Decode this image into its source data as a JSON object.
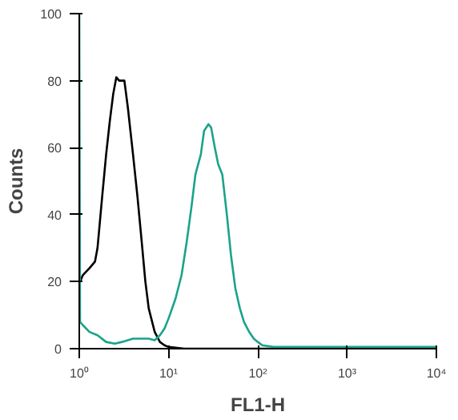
{
  "chart_data": {
    "type": "line",
    "xlabel": "FL1-H",
    "ylabel": "Counts",
    "log": "x",
    "grid": false,
    "xlim": [
      1,
      10000
    ],
    "xticks": [
      {
        "value": 1,
        "label": "10⁰"
      },
      {
        "value": 10,
        "label": "10¹"
      },
      {
        "value": 100,
        "label": "10²"
      },
      {
        "value": 1000,
        "label": "10³"
      },
      {
        "value": 10000,
        "label": "10⁴"
      }
    ],
    "ylim": [
      0,
      100
    ],
    "yticks": [
      0,
      20,
      40,
      60,
      80,
      100
    ],
    "series": [
      {
        "color": "#000000",
        "x": [
          1,
          1.02,
          1.1,
          1.3,
          1.5,
          1.6,
          1.8,
          2,
          2.2,
          2.4,
          2.6,
          2.8,
          3.2,
          3.5,
          4,
          4.5,
          5,
          5.5,
          6,
          7,
          8,
          9,
          10,
          15,
          250
        ],
        "values": [
          28,
          20,
          22,
          24,
          26,
          30,
          45,
          58,
          68,
          76,
          81,
          80,
          80,
          72,
          58,
          45,
          32,
          20,
          12,
          5,
          2,
          1,
          0.5,
          0,
          0
        ]
      },
      {
        "color": "#1aa38a",
        "x": [
          1,
          1.02,
          1.1,
          1.3,
          1.6,
          2,
          2.5,
          3,
          4,
          5,
          6,
          7,
          8,
          9,
          10,
          12,
          14,
          16,
          18,
          20,
          23,
          25,
          28,
          30,
          33,
          36,
          40,
          45,
          50,
          56,
          63,
          70,
          80,
          90,
          100,
          112,
          150,
          300,
          1000,
          10000
        ],
        "values": [
          100,
          8,
          7,
          5,
          4,
          2,
          1.5,
          2,
          3,
          3,
          3,
          2.5,
          4,
          6,
          9,
          15,
          22,
          32,
          42,
          52,
          58,
          65,
          67,
          66,
          60,
          55,
          52,
          40,
          28,
          18,
          12,
          8,
          5,
          3,
          2,
          1,
          0.5,
          0.5,
          0.5,
          0.5
        ]
      }
    ]
  }
}
